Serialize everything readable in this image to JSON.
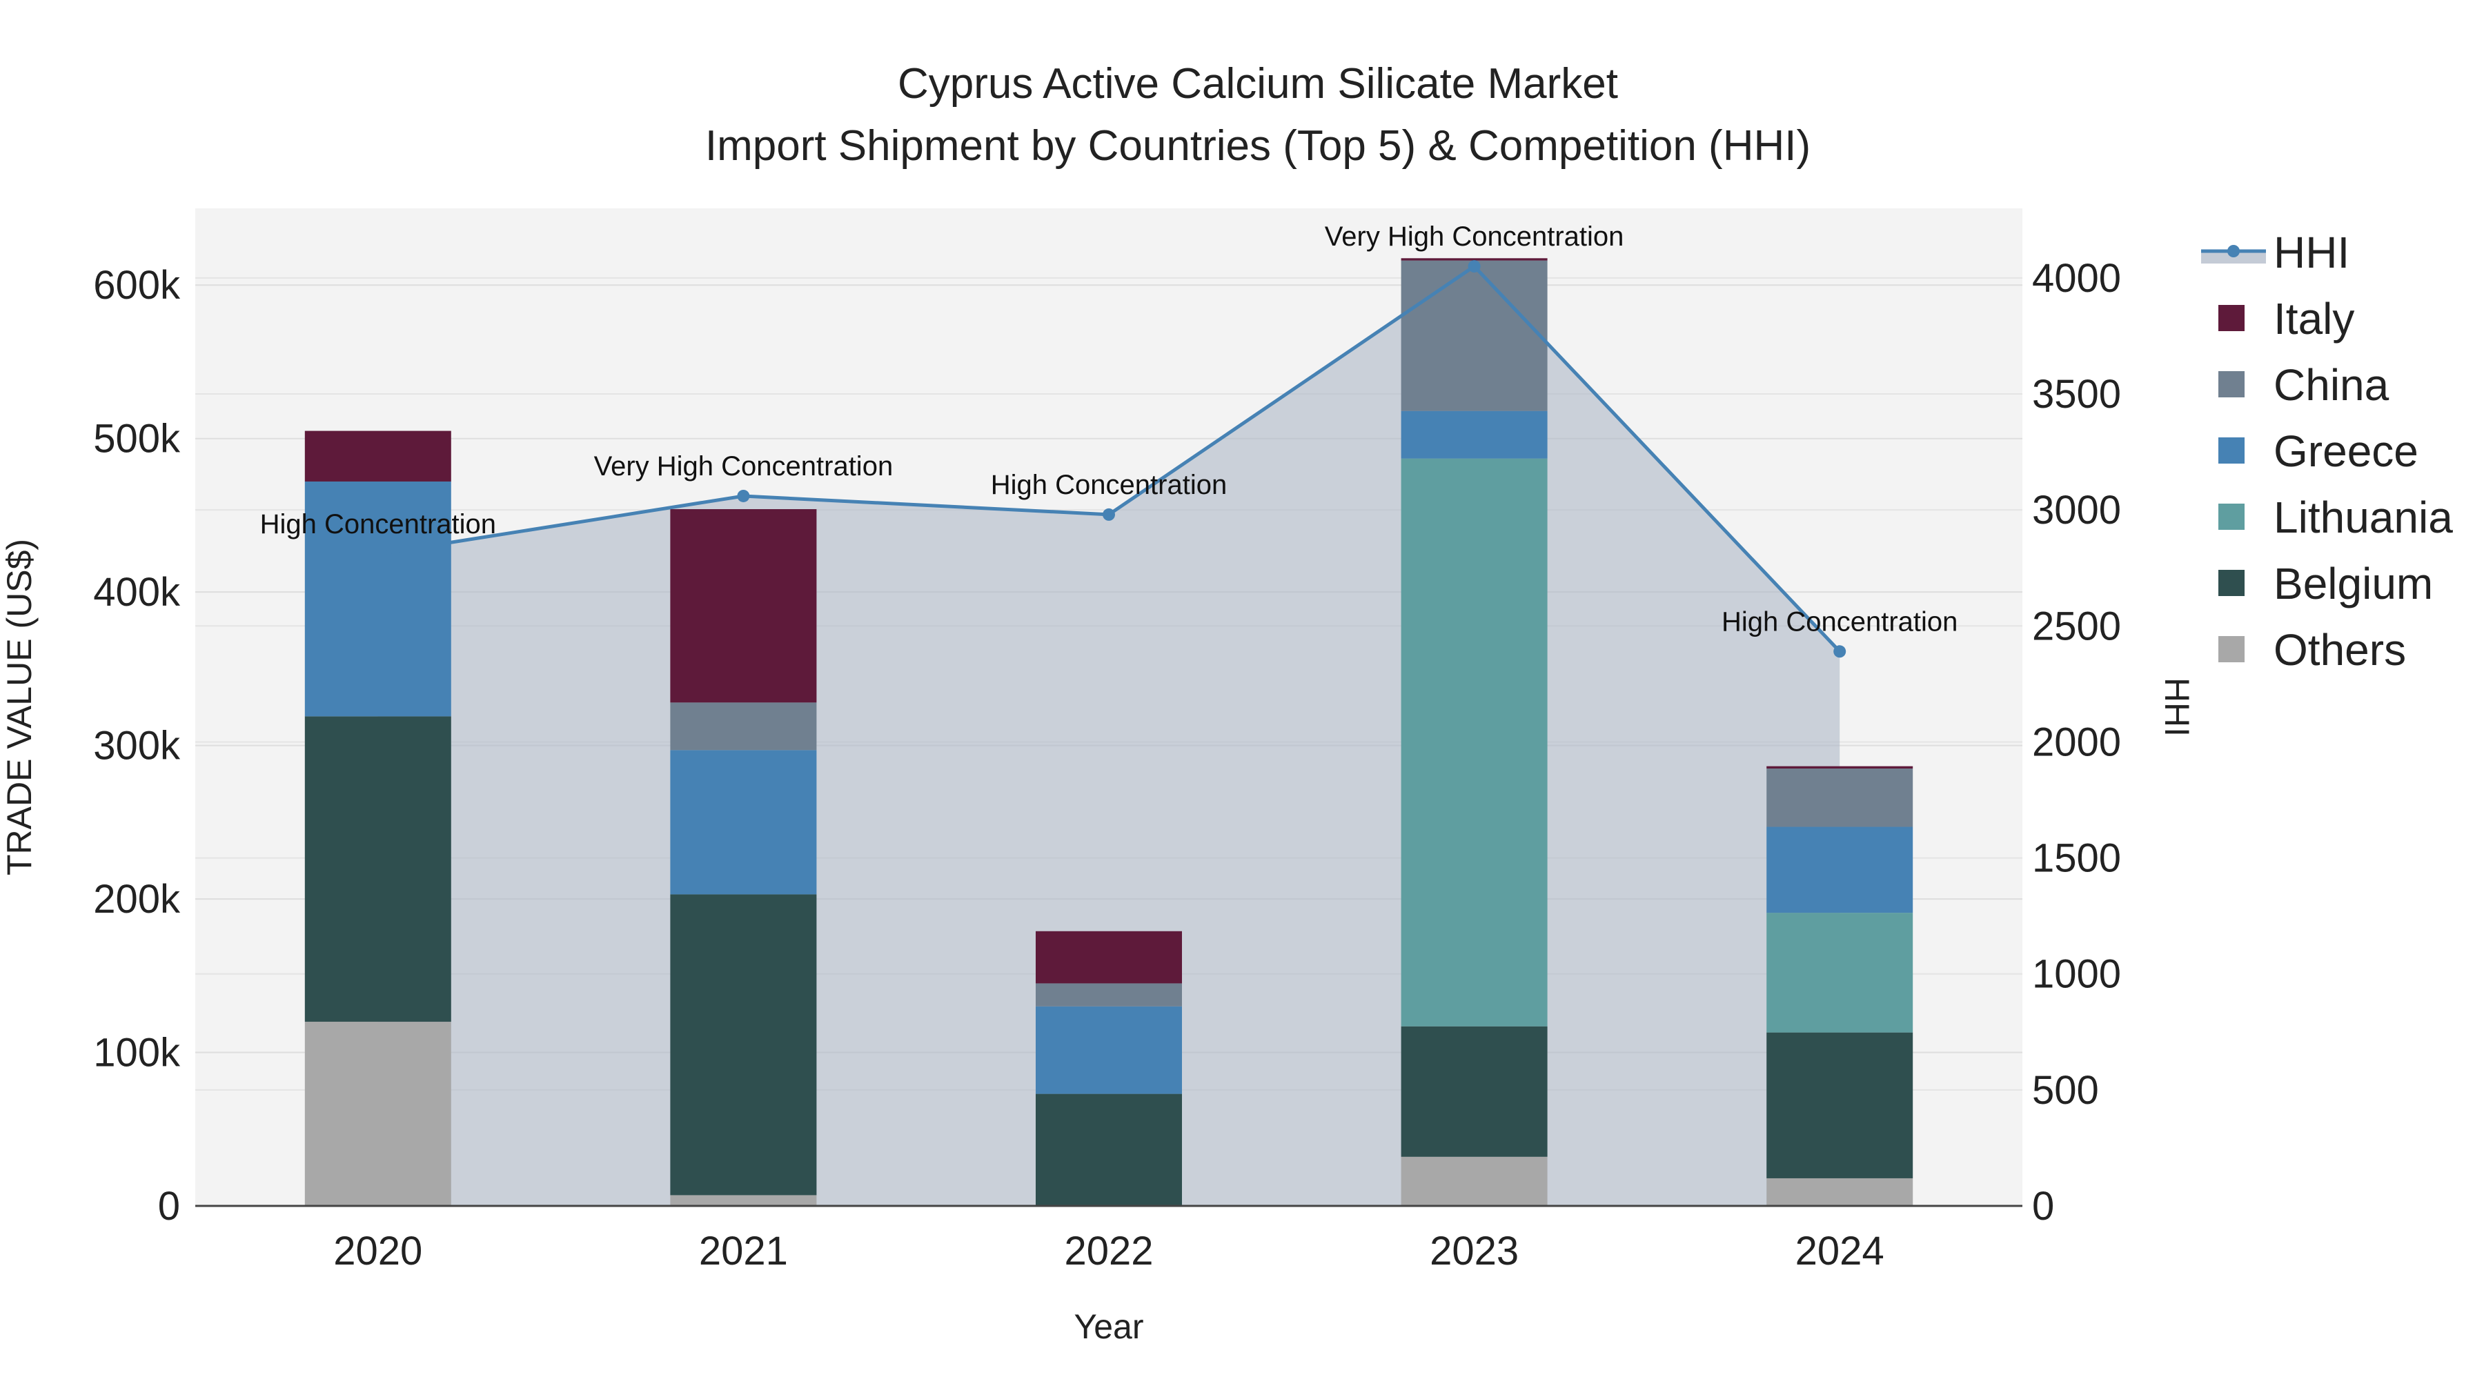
{
  "chart_data": {
    "type": "bar",
    "stacked": true,
    "title": "Cyprus Active Calcium Silicate Market",
    "subtitle": "Import Shipment by Countries (Top 5) & Competition (HHI)",
    "xlabel": "Year",
    "ylabel": "TRADE VALUE (US$)",
    "y2label": "HHI",
    "categories": [
      "2020",
      "2021",
      "2022",
      "2023",
      "2024"
    ],
    "ylim": [
      0,
      650000
    ],
    "y_ticks": [
      0,
      100000,
      200000,
      300000,
      400000,
      500000,
      600000
    ],
    "y_tick_labels": [
      "0",
      "100k",
      "200k",
      "300k",
      "400k",
      "500k",
      "600k"
    ],
    "y2lim": [
      0,
      4300
    ],
    "y2_ticks": [
      0,
      500,
      1000,
      1500,
      2000,
      2500,
      3000,
      3500,
      4000
    ],
    "y2_tick_labels": [
      "0",
      "500",
      "1000",
      "1500",
      "2000",
      "2500",
      "3000",
      "3500",
      "4000"
    ],
    "series": [
      {
        "name": "Others",
        "color": "#a8a8a8",
        "values": [
          120000,
          7000,
          0,
          32000,
          18000
        ]
      },
      {
        "name": "Belgium",
        "color": "#2f4f4f",
        "values": [
          199000,
          196000,
          73000,
          85000,
          95000
        ]
      },
      {
        "name": "Lithuania",
        "color": "#5f9ea0",
        "values": [
          0,
          0,
          0,
          370000,
          78000
        ]
      },
      {
        "name": "Greece",
        "color": "#4682b4",
        "values": [
          153000,
          94000,
          57000,
          31000,
          56000
        ]
      },
      {
        "name": "China",
        "color": "#708090",
        "values": [
          0,
          31000,
          15000,
          98000,
          38000
        ]
      },
      {
        "name": "Italy",
        "color": "#5e1a3a",
        "values": [
          33000,
          126000,
          34000,
          1500,
          1500
        ]
      }
    ],
    "hhi": {
      "name": "HHI",
      "color": "#4682b4",
      "values": [
        2810,
        3060,
        2980,
        4050,
        2390
      ],
      "labels": [
        "High Concentration",
        "Very High Concentration",
        "High Concentration",
        "Very High Concentration",
        "High Concentration"
      ]
    },
    "legend": [
      "HHI",
      "Italy",
      "China",
      "Greece",
      "Lithuania",
      "Belgium",
      "Others"
    ],
    "legend_position": "right"
  }
}
